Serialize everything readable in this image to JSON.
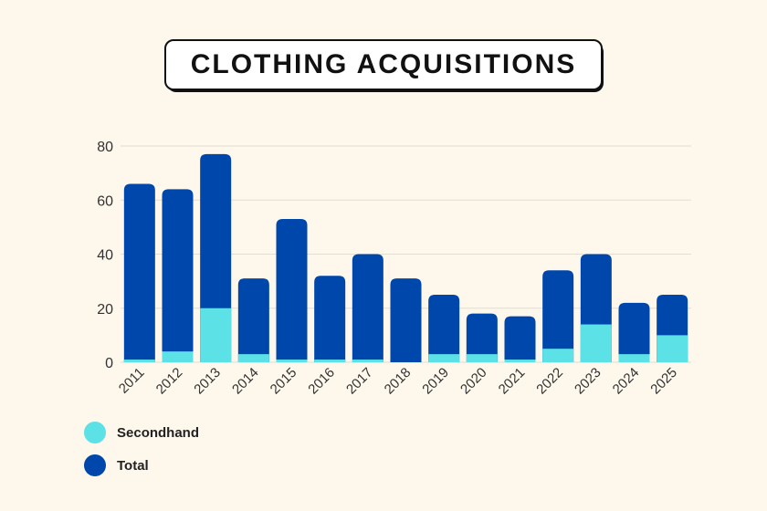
{
  "chart_data": {
    "type": "bar",
    "title": "CLOTHING ACQUISITIONS",
    "xlabel": "",
    "ylabel": "",
    "ylim": [
      0,
      80
    ],
    "yticks": [
      0,
      20,
      40,
      60,
      80
    ],
    "grid": true,
    "categories": [
      "2011",
      "2012",
      "2013",
      "2014",
      "2015",
      "2016",
      "2017",
      "2018",
      "2019",
      "2020",
      "2021",
      "2022",
      "2023",
      "2024",
      "2025"
    ],
    "series": [
      {
        "name": "Total",
        "color": "#0047ab",
        "values": [
          66,
          64,
          77,
          31,
          53,
          32,
          40,
          31,
          25,
          18,
          17,
          34,
          40,
          22,
          25
        ]
      },
      {
        "name": "Secondhand",
        "color": "#5ce1e6",
        "values": [
          1,
          4,
          20,
          3,
          1,
          1,
          1,
          0,
          3,
          3,
          1,
          5,
          14,
          3,
          10
        ]
      }
    ],
    "legend_placement": "bottom-left",
    "legend": [
      "Secondhand",
      "Total"
    ]
  }
}
